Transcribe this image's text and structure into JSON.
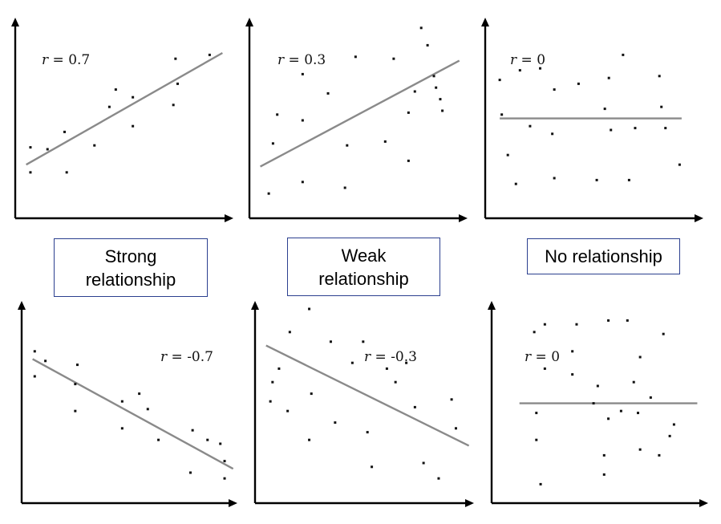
{
  "captions": {
    "strong": "Strong relationship",
    "weak": "Weak relationship",
    "none": "No relationship"
  },
  "chart_data": [
    {
      "type": "scatter",
      "label_prefix": "r = ",
      "label_value": "0.7",
      "points": [
        [
          0.06,
          0.36
        ],
        [
          0.06,
          0.23
        ],
        [
          0.14,
          0.35
        ],
        [
          0.22,
          0.44
        ],
        [
          0.23,
          0.23
        ],
        [
          0.36,
          0.37
        ],
        [
          0.43,
          0.57
        ],
        [
          0.46,
          0.66
        ],
        [
          0.54,
          0.62
        ],
        [
          0.54,
          0.47
        ],
        [
          0.73,
          0.58
        ],
        [
          0.75,
          0.69
        ],
        [
          0.74,
          0.82
        ],
        [
          0.9,
          0.84
        ]
      ],
      "trend": [
        [
          0.04,
          0.27
        ],
        [
          0.96,
          0.85
        ]
      ]
    },
    {
      "type": "scatter",
      "label_prefix": "r = ",
      "label_value": "0.3",
      "points": [
        [
          0.08,
          0.12
        ],
        [
          0.1,
          0.38
        ],
        [
          0.12,
          0.53
        ],
        [
          0.24,
          0.18
        ],
        [
          0.24,
          0.5
        ],
        [
          0.24,
          0.74
        ],
        [
          0.36,
          0.64
        ],
        [
          0.44,
          0.15
        ],
        [
          0.45,
          0.37
        ],
        [
          0.49,
          0.83
        ],
        [
          0.63,
          0.39
        ],
        [
          0.67,
          0.82
        ],
        [
          0.74,
          0.54
        ],
        [
          0.77,
          0.65
        ],
        [
          0.74,
          0.29
        ],
        [
          0.8,
          0.98
        ],
        [
          0.83,
          0.89
        ],
        [
          0.86,
          0.73
        ],
        [
          0.87,
          0.67
        ],
        [
          0.89,
          0.61
        ],
        [
          0.9,
          0.55
        ]
      ],
      "trend": [
        [
          0.04,
          0.26
        ],
        [
          0.98,
          0.81
        ]
      ]
    },
    {
      "type": "scatter",
      "label_prefix": "r = ",
      "label_value": "0",
      "points": [
        [
          0.06,
          0.71
        ],
        [
          0.07,
          0.53
        ],
        [
          0.1,
          0.32
        ],
        [
          0.14,
          0.17
        ],
        [
          0.16,
          0.76
        ],
        [
          0.21,
          0.47
        ],
        [
          0.26,
          0.77
        ],
        [
          0.32,
          0.43
        ],
        [
          0.33,
          0.66
        ],
        [
          0.33,
          0.2
        ],
        [
          0.45,
          0.69
        ],
        [
          0.54,
          0.19
        ],
        [
          0.58,
          0.56
        ],
        [
          0.6,
          0.72
        ],
        [
          0.61,
          0.45
        ],
        [
          0.67,
          0.84
        ],
        [
          0.73,
          0.46
        ],
        [
          0.7,
          0.19
        ],
        [
          0.86,
          0.57
        ],
        [
          0.85,
          0.73
        ],
        [
          0.88,
          0.46
        ],
        [
          0.95,
          0.27
        ]
      ],
      "trend": [
        [
          0.06,
          0.51
        ],
        [
          0.96,
          0.51
        ]
      ]
    },
    {
      "type": "scatter",
      "label_prefix": "r = ",
      "label_value": "-0.7",
      "points": [
        [
          0.05,
          0.78
        ],
        [
          0.05,
          0.65
        ],
        [
          0.1,
          0.73
        ],
        [
          0.25,
          0.71
        ],
        [
          0.24,
          0.61
        ],
        [
          0.24,
          0.47
        ],
        [
          0.46,
          0.52
        ],
        [
          0.46,
          0.38
        ],
        [
          0.54,
          0.56
        ],
        [
          0.58,
          0.48
        ],
        [
          0.63,
          0.32
        ],
        [
          0.78,
          0.15
        ],
        [
          0.79,
          0.37
        ],
        [
          0.86,
          0.32
        ],
        [
          0.92,
          0.3
        ],
        [
          0.94,
          0.21
        ],
        [
          0.94,
          0.12
        ]
      ],
      "trend": [
        [
          0.04,
          0.74
        ],
        [
          0.98,
          0.17
        ]
      ]
    },
    {
      "type": "scatter",
      "label_prefix": "r = ",
      "label_value": "-0.3",
      "points": [
        [
          0.06,
          0.52
        ],
        [
          0.07,
          0.62
        ],
        [
          0.1,
          0.69
        ],
        [
          0.14,
          0.47
        ],
        [
          0.15,
          0.88
        ],
        [
          0.24,
          0.32
        ],
        [
          0.25,
          0.56
        ],
        [
          0.24,
          1.0
        ],
        [
          0.34,
          0.83
        ],
        [
          0.36,
          0.41
        ],
        [
          0.44,
          0.72
        ],
        [
          0.49,
          0.83
        ],
        [
          0.51,
          0.36
        ],
        [
          0.53,
          0.18
        ],
        [
          0.6,
          0.69
        ],
        [
          0.64,
          0.62
        ],
        [
          0.69,
          0.72
        ],
        [
          0.73,
          0.49
        ],
        [
          0.77,
          0.2
        ],
        [
          0.84,
          0.12
        ],
        [
          0.9,
          0.53
        ],
        [
          0.92,
          0.38
        ]
      ],
      "trend": [
        [
          0.04,
          0.81
        ],
        [
          0.98,
          0.29
        ]
      ]
    },
    {
      "type": "scatter",
      "label_prefix": "r = ",
      "label_value": "0",
      "points": [
        [
          0.19,
          0.88
        ],
        [
          0.24,
          0.92
        ],
        [
          0.37,
          0.78
        ],
        [
          0.39,
          0.92
        ],
        [
          0.49,
          0.6
        ],
        [
          0.54,
          0.94
        ],
        [
          0.63,
          0.94
        ],
        [
          0.69,
          0.75
        ],
        [
          0.24,
          0.69
        ],
        [
          0.37,
          0.66
        ],
        [
          0.47,
          0.51
        ],
        [
          0.66,
          0.62
        ],
        [
          0.74,
          0.54
        ],
        [
          0.8,
          0.87
        ],
        [
          0.2,
          0.46
        ],
        [
          0.54,
          0.43
        ],
        [
          0.6,
          0.47
        ],
        [
          0.68,
          0.46
        ],
        [
          0.85,
          0.4
        ],
        [
          0.83,
          0.34
        ],
        [
          0.2,
          0.32
        ],
        [
          0.69,
          0.27
        ],
        [
          0.78,
          0.24
        ],
        [
          0.52,
          0.24
        ],
        [
          0.22,
          0.09
        ],
        [
          0.52,
          0.14
        ]
      ],
      "trend": [
        [
          0.12,
          0.51
        ],
        [
          0.96,
          0.51
        ]
      ]
    }
  ]
}
